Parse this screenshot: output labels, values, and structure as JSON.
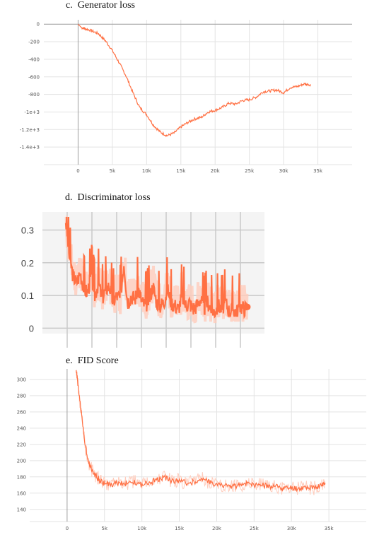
{
  "panels": {
    "c": {
      "label": "c.",
      "title": "Generator loss"
    },
    "d": {
      "label": "d.",
      "title": "Discriminator loss"
    },
    "e": {
      "label": "e.",
      "title": "FID Score"
    }
  },
  "colors": {
    "series": "#ff7043",
    "series_light": "#ffccbc",
    "grid": "#e3e3e3",
    "axis": "#9e9e9e",
    "grid_dark": "#c9c9c9"
  },
  "chart_data": [
    {
      "type": "line",
      "title": "Generator loss",
      "x_ticks": [
        {
          "v": 0,
          "label": "0"
        },
        {
          "v": 5000,
          "label": "5k"
        },
        {
          "v": 10000,
          "label": "10k"
        },
        {
          "v": 15000,
          "label": "15k"
        },
        {
          "v": 20000,
          "label": "20k"
        },
        {
          "v": 25000,
          "label": "25k"
        },
        {
          "v": 30000,
          "label": "30k"
        },
        {
          "v": 35000,
          "label": "35k"
        }
      ],
      "y_ticks": [
        {
          "v": 0,
          "label": "0"
        },
        {
          "v": -200,
          "label": "-200"
        },
        {
          "v": -400,
          "label": "-400"
        },
        {
          "v": -600,
          "label": "-600"
        },
        {
          "v": -800,
          "label": "-800"
        },
        {
          "v": -1000,
          "label": "-1e+3"
        },
        {
          "v": -1200,
          "label": "-1.2e+3"
        },
        {
          "v": -1400,
          "label": "-1.4e+3"
        }
      ],
      "xlim": [
        -5000,
        40000
      ],
      "ylim": [
        -1600,
        50
      ],
      "grid": true,
      "series": [
        {
          "x": [
            0,
            500,
            1000,
            2000,
            3000,
            4000,
            5000,
            6000,
            7000,
            8000,
            9000,
            10000,
            11000,
            12000,
            13000,
            14000,
            15000,
            16000,
            17000,
            18000,
            19000,
            20000,
            21000,
            22000,
            23000,
            24000,
            25000,
            26000,
            27000,
            28000,
            29000,
            30000,
            31000,
            32000,
            33000,
            34000
          ],
          "values": [
            0,
            -40,
            -50,
            -75,
            -110,
            -190,
            -300,
            -440,
            -590,
            -780,
            -950,
            -1030,
            -1150,
            -1230,
            -1270,
            -1240,
            -1170,
            -1120,
            -1080,
            -1060,
            -1000,
            -980,
            -950,
            -900,
            -910,
            -870,
            -860,
            -830,
            -770,
            -760,
            -750,
            -780,
            -720,
            -710,
            -680,
            -690
          ]
        }
      ]
    },
    {
      "type": "line",
      "title": "Discriminator loss",
      "y_ticks": [
        {
          "v": 0,
          "label": "0"
        },
        {
          "v": 0.1,
          "label": "0.1"
        },
        {
          "v": 0.2,
          "label": "0.2"
        },
        {
          "v": 0.3,
          "label": "0.3"
        }
      ],
      "ylim": [
        -0.01,
        0.34
      ],
      "xlim": [
        0,
        1
      ],
      "grid": true,
      "series": [
        {
          "x": [
            0,
            0.02,
            0.04,
            0.06,
            0.08,
            0.1,
            0.12,
            0.14,
            0.16,
            0.18,
            0.2,
            0.22,
            0.24,
            0.26,
            0.28,
            0.3,
            0.32,
            0.34,
            0.36,
            0.38,
            0.4,
            0.42,
            0.44,
            0.46,
            0.48,
            0.5,
            0.52,
            0.54,
            0.56,
            0.58,
            0.6,
            0.62,
            0.64,
            0.66,
            0.68,
            0.7,
            0.72,
            0.74,
            0.76,
            0.78,
            0.8,
            0.82,
            0.84,
            0.86,
            0.88,
            0.9,
            0.92,
            0.94,
            0.96,
            0.98,
            1.0
          ],
          "values": [
            0.33,
            0.22,
            0.16,
            0.14,
            0.17,
            0.12,
            0.11,
            0.16,
            0.1,
            0.14,
            0.09,
            0.12,
            0.13,
            0.08,
            0.1,
            0.09,
            0.2,
            0.08,
            0.1,
            0.09,
            0.12,
            0.08,
            0.07,
            0.09,
            0.13,
            0.08,
            0.07,
            0.08,
            0.12,
            0.08,
            0.07,
            0.06,
            0.1,
            0.07,
            0.08,
            0.06,
            0.07,
            0.09,
            0.06,
            0.08,
            0.06,
            0.05,
            0.07,
            0.06,
            0.08,
            0.05,
            0.06,
            0.05,
            0.07,
            0.06,
            0.065
          ]
        }
      ]
    },
    {
      "type": "line",
      "title": "FID Score",
      "x_ticks": [
        {
          "v": 0,
          "label": "0"
        },
        {
          "v": 5000,
          "label": "5k"
        },
        {
          "v": 10000,
          "label": "10k"
        },
        {
          "v": 15000,
          "label": "15k"
        },
        {
          "v": 20000,
          "label": "20k"
        },
        {
          "v": 25000,
          "label": "25k"
        },
        {
          "v": 30000,
          "label": "30k"
        },
        {
          "v": 35000,
          "label": "35k"
        }
      ],
      "y_ticks": [
        {
          "v": 140,
          "label": "140"
        },
        {
          "v": 160,
          "label": "160"
        },
        {
          "v": 180,
          "label": "180"
        },
        {
          "v": 200,
          "label": "200"
        },
        {
          "v": 220,
          "label": "220"
        },
        {
          "v": 240,
          "label": "240"
        },
        {
          "v": 260,
          "label": "260"
        },
        {
          "v": 280,
          "label": "280"
        },
        {
          "v": 300,
          "label": "300"
        }
      ],
      "xlim": [
        -5000,
        40000
      ],
      "ylim": [
        125,
        313
      ],
      "grid": true,
      "series": [
        {
          "x": [
            1200,
            1500,
            2000,
            2500,
            3000,
            3500,
            4000,
            4500,
            5000,
            6000,
            7000,
            8000,
            9000,
            10000,
            11000,
            12000,
            13000,
            14000,
            15000,
            16000,
            17000,
            18000,
            19000,
            20000,
            21000,
            22000,
            23000,
            24000,
            25000,
            26000,
            27000,
            28000,
            29000,
            30000,
            31000,
            32000,
            33000,
            34000,
            34500
          ],
          "values": [
            313,
            290,
            250,
            215,
            195,
            185,
            180,
            175,
            172,
            171,
            173,
            172,
            174,
            170,
            173,
            176,
            180,
            175,
            176,
            172,
            174,
            178,
            173,
            171,
            170,
            168,
            169,
            172,
            170,
            171,
            167,
            169,
            166,
            167,
            166,
            168,
            166,
            170,
            172
          ]
        }
      ]
    }
  ]
}
